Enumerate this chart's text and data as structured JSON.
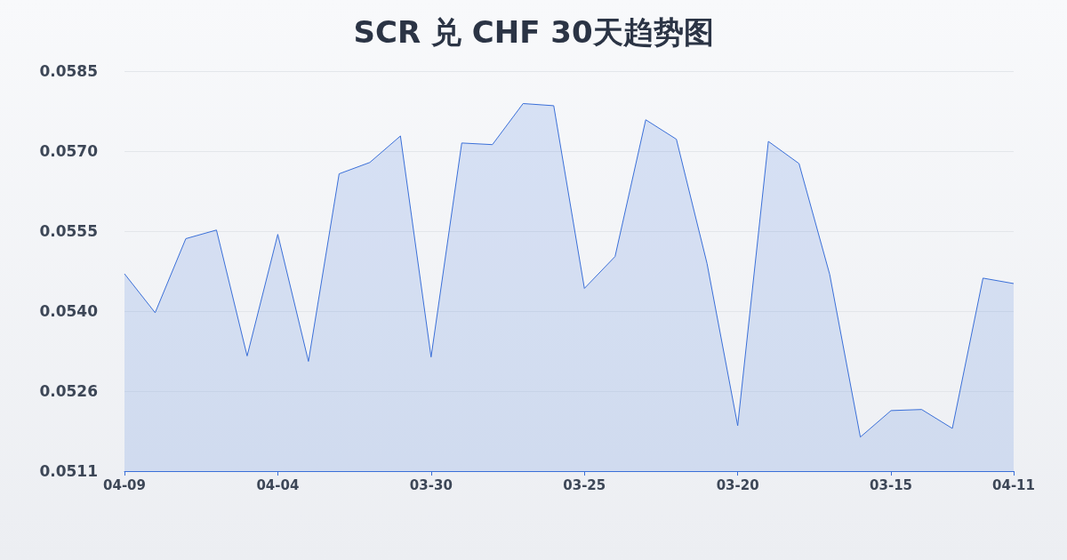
{
  "chart_data": {
    "type": "area",
    "title": "SCR 兑 CHF 30天趋势图",
    "categories": [
      "04-09",
      null,
      null,
      null,
      null,
      "04-04",
      null,
      null,
      null,
      null,
      "03-30",
      null,
      null,
      null,
      null,
      "03-25",
      null,
      null,
      null,
      null,
      "03-20",
      null,
      null,
      null,
      null,
      "03-15",
      null,
      null,
      null,
      "04-11"
    ],
    "series": [
      {
        "color": "#3a6fd8",
        "values": [
          0.05473,
          0.05401,
          0.05538,
          0.05554,
          0.05321,
          0.05546,
          0.05311,
          0.05658,
          0.05679,
          0.05728,
          0.05319,
          0.05715,
          0.05712,
          0.05788,
          0.05784,
          0.05446,
          0.05505,
          0.05758,
          0.05722,
          0.05492,
          0.05192,
          0.05718,
          0.05677,
          0.05472,
          0.05171,
          0.0522,
          0.05222,
          0.05187,
          0.05465,
          0.05455
        ]
      }
    ],
    "ylim": [
      0.05108,
      0.05848
    ],
    "yticks": [
      {
        "value": 0.05108,
        "label": "0.0511"
      },
      {
        "value": 0.05256,
        "label": "0.0526"
      },
      {
        "value": 0.05404,
        "label": "0.0540"
      },
      {
        "value": 0.05552,
        "label": "0.0555"
      },
      {
        "value": 0.057,
        "label": "0.0570"
      },
      {
        "value": 0.05848,
        "label": "0.0585"
      }
    ],
    "grid": "y",
    "marker": "none",
    "line_style": "solid"
  }
}
